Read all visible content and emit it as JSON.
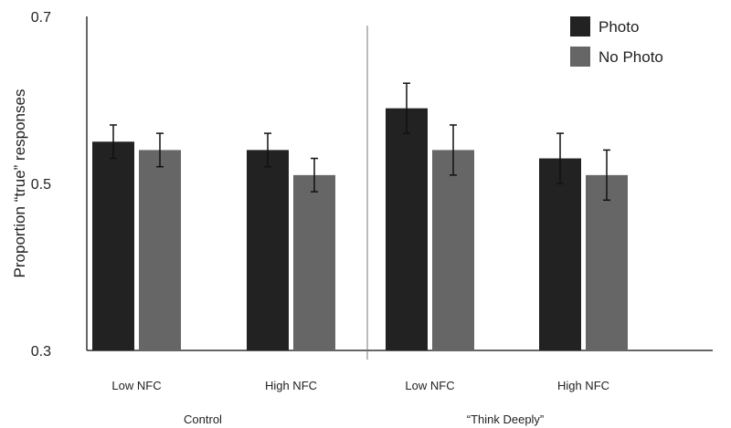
{
  "chart_data": {
    "type": "bar",
    "title": "",
    "ylabel": "Proportion “true” responses",
    "xlabel": "",
    "ylim": [
      0.3,
      0.7
    ],
    "yticks": [
      "0.3",
      "0.5",
      "0.7"
    ],
    "groups": [
      {
        "label": "Control",
        "categories": [
          "Low NFC",
          "High NFC"
        ]
      },
      {
        "label": "“Think Deeply”",
        "categories": [
          "Low NFC",
          "High NFC"
        ]
      }
    ],
    "categories": [
      "Low NFC",
      "High NFC",
      "Low NFC",
      "High NFC"
    ],
    "series": [
      {
        "name": "Photo",
        "color": "#222222",
        "values": [
          0.55,
          0.54,
          0.59,
          0.53
        ],
        "errors": [
          0.02,
          0.02,
          0.03,
          0.03
        ]
      },
      {
        "name": "No Photo",
        "color": "#666666",
        "values": [
          0.54,
          0.51,
          0.54,
          0.51
        ],
        "errors": [
          0.02,
          0.02,
          0.03,
          0.03
        ]
      }
    ],
    "legend": "top-right",
    "grid": false
  }
}
